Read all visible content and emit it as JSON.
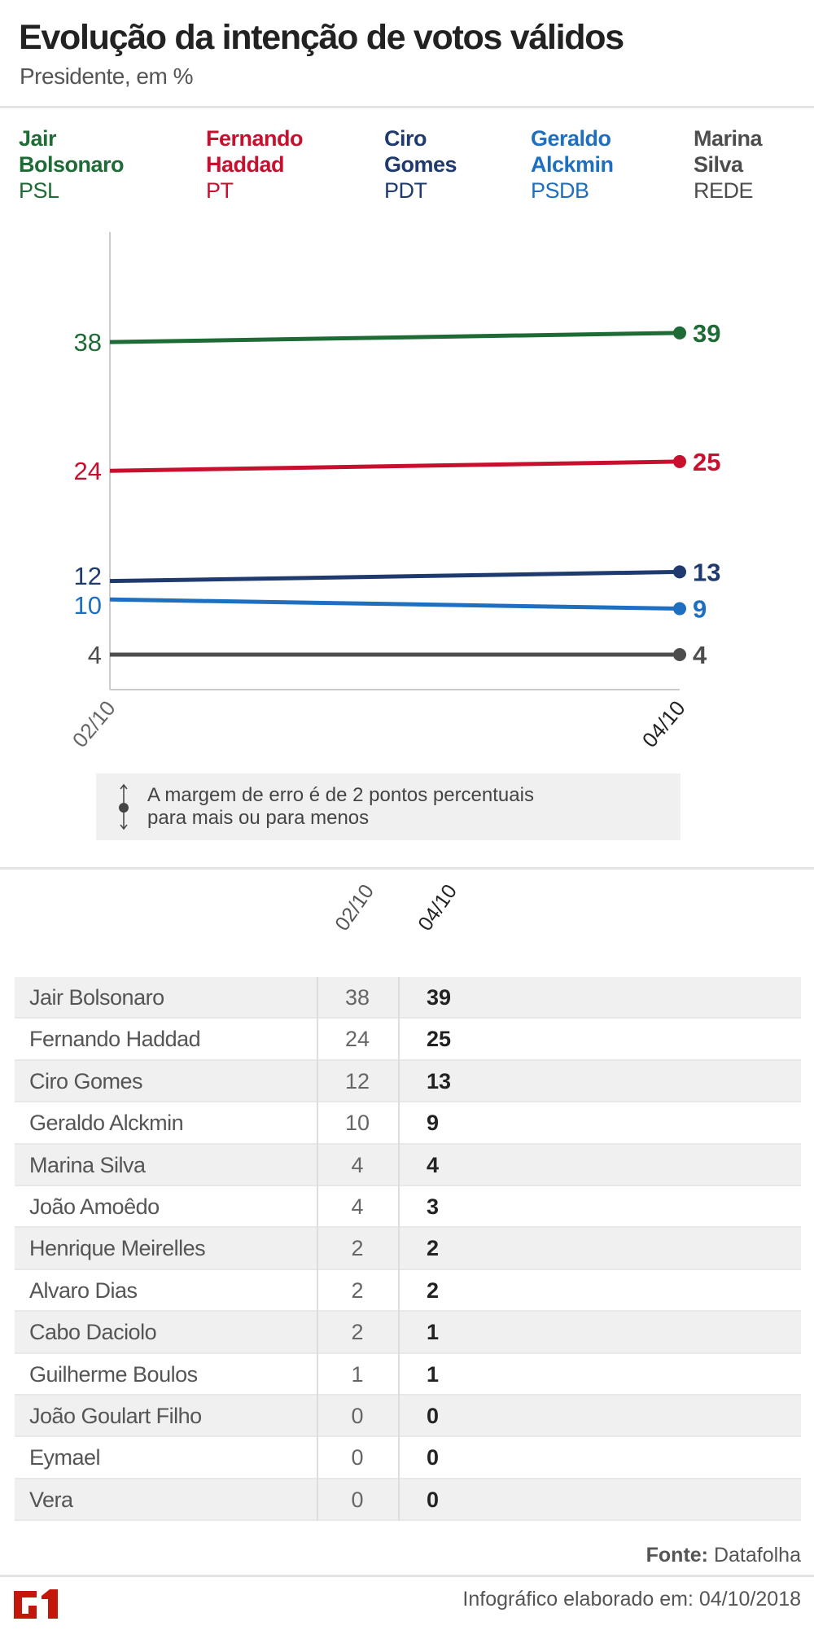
{
  "header": {
    "title": "Evolução da intenção de votos válidos",
    "subtitle": "Presidente, em %"
  },
  "legend": [
    {
      "name1": "Jair",
      "name2": "Bolsonaro",
      "party": "PSL",
      "color": "#1e6b35"
    },
    {
      "name1": "Fernando",
      "name2": "Haddad",
      "party": "PT",
      "color": "#c8102e"
    },
    {
      "name1": "Ciro",
      "name2": "Gomes",
      "party": "PDT",
      "color": "#1f3a6e"
    },
    {
      "name1": "Geraldo",
      "name2": "Alckmin",
      "party": "PSDB",
      "color": "#1e6fbf"
    },
    {
      "name1": "Marina",
      "name2": "Silva",
      "party": "REDE",
      "color": "#4d4d4d"
    }
  ],
  "chart_data": {
    "type": "line",
    "x": [
      "02/10",
      "04/10"
    ],
    "series": [
      {
        "name": "Jair Bolsonaro",
        "values": [
          38,
          39
        ],
        "color": "#1e6b35"
      },
      {
        "name": "Fernando Haddad",
        "values": [
          24,
          25
        ],
        "color": "#c8102e"
      },
      {
        "name": "Ciro Gomes",
        "values": [
          12,
          13
        ],
        "color": "#1f3a6e"
      },
      {
        "name": "Geraldo Alckmin",
        "values": [
          10,
          9
        ],
        "color": "#1e6fbf"
      },
      {
        "name": "Marina Silva",
        "values": [
          4,
          4
        ],
        "color": "#4d4d4d"
      }
    ],
    "ylabel": "%",
    "ylim": [
      0,
      48
    ],
    "grid": false
  },
  "note": {
    "line1": "A margem de erro é de 2 pontos percentuais",
    "line2": "para mais ou para menos"
  },
  "table": {
    "columns": [
      "02/10",
      "04/10"
    ],
    "rows": [
      {
        "name": "Jair Bolsonaro",
        "a": "38",
        "b": "39"
      },
      {
        "name": "Fernando Haddad",
        "a": "24",
        "b": "25"
      },
      {
        "name": "Ciro Gomes",
        "a": "12",
        "b": "13"
      },
      {
        "name": "Geraldo Alckmin",
        "a": "10",
        "b": "9"
      },
      {
        "name": "Marina Silva",
        "a": "4",
        "b": "4"
      },
      {
        "name": "João Amoêdo",
        "a": "4",
        "b": "3"
      },
      {
        "name": "Henrique Meirelles",
        "a": "2",
        "b": "2"
      },
      {
        "name": "Alvaro Dias",
        "a": "2",
        "b": "2"
      },
      {
        "name": "Cabo Daciolo",
        "a": "2",
        "b": "1"
      },
      {
        "name": "Guilherme Boulos",
        "a": "1",
        "b": "1"
      },
      {
        "name": "João Goulart Filho",
        "a": "0",
        "b": "0"
      },
      {
        "name": "Eymael",
        "a": "0",
        "b": "0"
      },
      {
        "name": "Vera",
        "a": "0",
        "b": "0"
      }
    ]
  },
  "footer": {
    "source_label": "Fonte:",
    "source": "Datafolha",
    "credit": "Infográfico elaborado em: 04/10/2018",
    "logo": "G1"
  }
}
